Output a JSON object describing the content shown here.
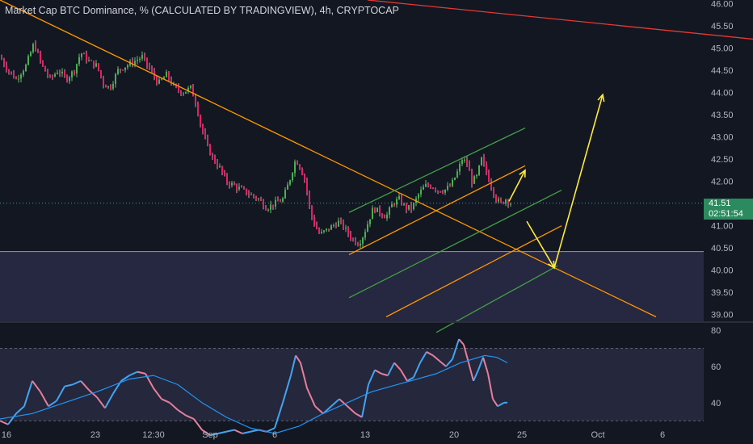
{
  "header": {
    "title": "Market Cap BTC Dominance, % (CALCULATED BY TRADINGVIEW), 4h, CRYPTOCAP"
  },
  "price_badge": {
    "price": "41.51",
    "countdown": "02:51:54"
  },
  "colors": {
    "background": "#131722",
    "bull": "#26a69a",
    "bull_candle": "#4caf50",
    "bear_candle": "#e91e63",
    "bear_wick": "#f48fb1",
    "trendline_orange": "#ff9800",
    "channel_green": "#43a047",
    "arrow_yellow": "#ffeb3b",
    "red_line": "#e53935",
    "support_zone": "#2a2a45",
    "rsi_ma": "#2196f3"
  },
  "chart_data": [
    {
      "type": "candlestick",
      "title": "Market Cap BTC Dominance, % (CALCULATED BY TRADINGVIEW), 4h, CRYPTOCAP",
      "y_axis": {
        "ticks": [
          46.0,
          45.5,
          45.0,
          44.5,
          44.0,
          43.5,
          43.0,
          42.5,
          42.0,
          41.5,
          41.0,
          40.5,
          40.0,
          39.5,
          39.0
        ],
        "range": [
          38.85,
          46.08
        ]
      },
      "x_axis": {
        "ticks": [
          "16",
          "23",
          "12:30",
          "Sep",
          "6",
          "13",
          "20",
          "25",
          "Oct",
          "6"
        ]
      },
      "last_price": 41.51,
      "price_path": [
        [
          0,
          44.8
        ],
        [
          10,
          44.5
        ],
        [
          20,
          44.3
        ],
        [
          32,
          44.6
        ],
        [
          42,
          45.1
        ],
        [
          52,
          44.6
        ],
        [
          62,
          44.3
        ],
        [
          72,
          44.5
        ],
        [
          82,
          44.3
        ],
        [
          92,
          44.5
        ],
        [
          100,
          44.9
        ],
        [
          110,
          44.7
        ],
        [
          120,
          44.6
        ],
        [
          128,
          44.2
        ],
        [
          136,
          44.1
        ],
        [
          146,
          44.5
        ],
        [
          156,
          44.6
        ],
        [
          166,
          44.7
        ],
        [
          176,
          44.8
        ],
        [
          186,
          44.5
        ],
        [
          196,
          44.2
        ],
        [
          206,
          44.4
        ],
        [
          216,
          44.1
        ],
        [
          226,
          44.0
        ],
        [
          236,
          44.1
        ],
        [
          242,
          43.8
        ],
        [
          248,
          43.3
        ],
        [
          256,
          42.8
        ],
        [
          264,
          42.5
        ],
        [
          272,
          42.3
        ],
        [
          280,
          42.0
        ],
        [
          290,
          41.9
        ],
        [
          300,
          41.8
        ],
        [
          310,
          41.7
        ],
        [
          320,
          41.6
        ],
        [
          330,
          41.4
        ],
        [
          340,
          41.5
        ],
        [
          350,
          41.6
        ],
        [
          358,
          42.0
        ],
        [
          366,
          42.5
        ],
        [
          372,
          42.3
        ],
        [
          378,
          42.0
        ],
        [
          384,
          41.3
        ],
        [
          390,
          41.0
        ],
        [
          396,
          40.8
        ],
        [
          404,
          40.9
        ],
        [
          412,
          41.0
        ],
        [
          420,
          41.1
        ],
        [
          428,
          40.9
        ],
        [
          436,
          40.7
        ],
        [
          444,
          40.6
        ],
        [
          450,
          40.8
        ],
        [
          456,
          41.1
        ],
        [
          462,
          41.4
        ],
        [
          470,
          41.3
        ],
        [
          478,
          41.2
        ],
        [
          486,
          41.5
        ],
        [
          494,
          41.6
        ],
        [
          502,
          41.4
        ],
        [
          510,
          41.4
        ],
        [
          518,
          41.7
        ],
        [
          526,
          41.9
        ],
        [
          534,
          41.9
        ],
        [
          542,
          41.8
        ],
        [
          550,
          41.8
        ],
        [
          558,
          41.9
        ],
        [
          566,
          42.2
        ],
        [
          572,
          42.5
        ],
        [
          578,
          42.4
        ],
        [
          584,
          42.0
        ],
        [
          590,
          42.1
        ],
        [
          596,
          42.5
        ],
        [
          602,
          42.2
        ],
        [
          608,
          41.9
        ],
        [
          614,
          41.6
        ],
        [
          620,
          41.5
        ],
        [
          626,
          41.6
        ],
        [
          632,
          41.51
        ]
      ],
      "annotations": {
        "support_zone": [
          38.85,
          40.42
        ],
        "descending_trendline": [
          [
            0,
            46.08
          ],
          [
            812,
            38.95
          ]
        ],
        "red_line": [
          [
            455,
            46.08
          ],
          [
            932,
            45.2
          ]
        ],
        "channel_upper": [
          [
            432,
            41.3
          ],
          [
            650,
            43.2
          ]
        ],
        "channel_mid": [
          [
            432,
            40.35
          ],
          [
            650,
            42.35
          ]
        ],
        "channel_lower_1": [
          [
            432,
            39.38
          ],
          [
            695,
            41.8
          ]
        ],
        "channel_lower_2": [
          [
            478,
            38.95
          ],
          [
            695,
            41.0
          ]
        ],
        "channel_lower_3": [
          [
            540,
            38.6
          ],
          [
            690,
            40.1
          ]
        ],
        "arrow_up_small": [
          [
            630,
            41.55
          ],
          [
            650,
            42.25
          ]
        ],
        "arrow_down": [
          [
            652,
            41.1
          ],
          [
            686,
            40.05
          ]
        ],
        "arrow_up_large": [
          [
            686,
            40.05
          ],
          [
            746,
            43.95
          ]
        ]
      }
    },
    {
      "type": "line",
      "title": "",
      "y_axis": {
        "ticks": [
          80,
          60,
          40
        ],
        "range": [
          27,
          84
        ]
      },
      "band": [
        30,
        70
      ],
      "rsi_path": [
        [
          0,
          30
        ],
        [
          10,
          28
        ],
        [
          20,
          34
        ],
        [
          30,
          38
        ],
        [
          40,
          52
        ],
        [
          50,
          46
        ],
        [
          60,
          38
        ],
        [
          70,
          41
        ],
        [
          80,
          49
        ],
        [
          90,
          50
        ],
        [
          100,
          52
        ],
        [
          110,
          47
        ],
        [
          120,
          43
        ],
        [
          130,
          37
        ],
        [
          140,
          45
        ],
        [
          150,
          52
        ],
        [
          160,
          55
        ],
        [
          170,
          57
        ],
        [
          180,
          56
        ],
        [
          190,
          48
        ],
        [
          200,
          42
        ],
        [
          210,
          40
        ],
        [
          220,
          36
        ],
        [
          230,
          33
        ],
        [
          240,
          31
        ],
        [
          250,
          25
        ],
        [
          260,
          22
        ],
        [
          270,
          23
        ],
        [
          280,
          24
        ],
        [
          290,
          25
        ],
        [
          300,
          23
        ],
        [
          310,
          24
        ],
        [
          320,
          25
        ],
        [
          330,
          24
        ],
        [
          340,
          26
        ],
        [
          350,
          40
        ],
        [
          360,
          55
        ],
        [
          366,
          66
        ],
        [
          372,
          62
        ],
        [
          380,
          48
        ],
        [
          390,
          38
        ],
        [
          400,
          34
        ],
        [
          410,
          38
        ],
        [
          420,
          42
        ],
        [
          430,
          38
        ],
        [
          440,
          34
        ],
        [
          448,
          32
        ],
        [
          456,
          50
        ],
        [
          464,
          58
        ],
        [
          472,
          56
        ],
        [
          480,
          55
        ],
        [
          488,
          62
        ],
        [
          496,
          58
        ],
        [
          504,
          52
        ],
        [
          512,
          54
        ],
        [
          520,
          62
        ],
        [
          528,
          68
        ],
        [
          536,
          66
        ],
        [
          544,
          63
        ],
        [
          552,
          60
        ],
        [
          560,
          64
        ],
        [
          568,
          75
        ],
        [
          574,
          72
        ],
        [
          580,
          62
        ],
        [
          586,
          52
        ],
        [
          592,
          58
        ],
        [
          598,
          65
        ],
        [
          604,
          56
        ],
        [
          610,
          42
        ],
        [
          616,
          38
        ],
        [
          624,
          40
        ],
        [
          628,
          40
        ]
      ],
      "ma_path": [
        [
          0,
          31
        ],
        [
          40,
          34
        ],
        [
          80,
          40
        ],
        [
          120,
          46
        ],
        [
          160,
          53
        ],
        [
          190,
          55
        ],
        [
          220,
          50
        ],
        [
          250,
          40
        ],
        [
          280,
          32
        ],
        [
          310,
          26
        ],
        [
          340,
          23
        ],
        [
          370,
          27
        ],
        [
          400,
          34
        ],
        [
          430,
          40
        ],
        [
          460,
          46
        ],
        [
          500,
          51
        ],
        [
          540,
          56
        ],
        [
          570,
          62
        ],
        [
          600,
          66
        ],
        [
          615,
          65
        ],
        [
          628,
          62
        ]
      ]
    }
  ]
}
